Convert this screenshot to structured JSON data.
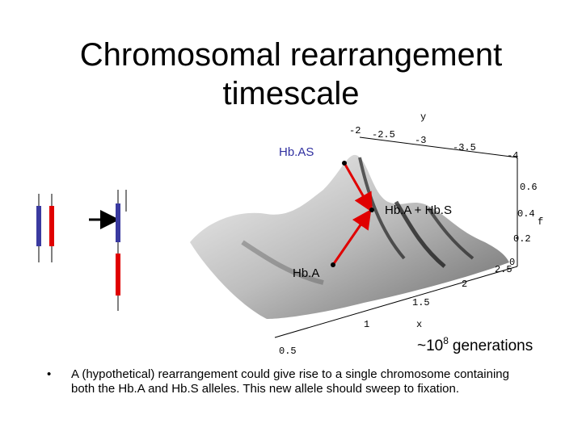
{
  "title": "Chromosomal rearrangement timescale",
  "plot": {
    "y_axis": {
      "label": "y",
      "ticks": [
        "-2",
        "-2.5",
        "-3",
        "-3.5",
        "-4"
      ]
    },
    "f_axis": {
      "label": "f",
      "ticks": [
        "0.6",
        "0.4",
        "0.2",
        "0"
      ]
    },
    "x_axis": {
      "label": "x",
      "ticks": [
        "2.5",
        "2",
        "1.5",
        "1",
        "0.5"
      ]
    }
  },
  "annotations": {
    "hbas": "Hb.AS",
    "hba_hbs": "Hb.A + Hb.S",
    "hba": "Hb.A",
    "generations": {
      "prefix": "~10",
      "exponent": "8",
      "suffix": "generations"
    }
  },
  "bullet": "A (hypothetical) rearrangement could give rise to a single chromosome containing both the Hb.A and Hb.S alleles.  This new allele should sweep to fixation."
}
